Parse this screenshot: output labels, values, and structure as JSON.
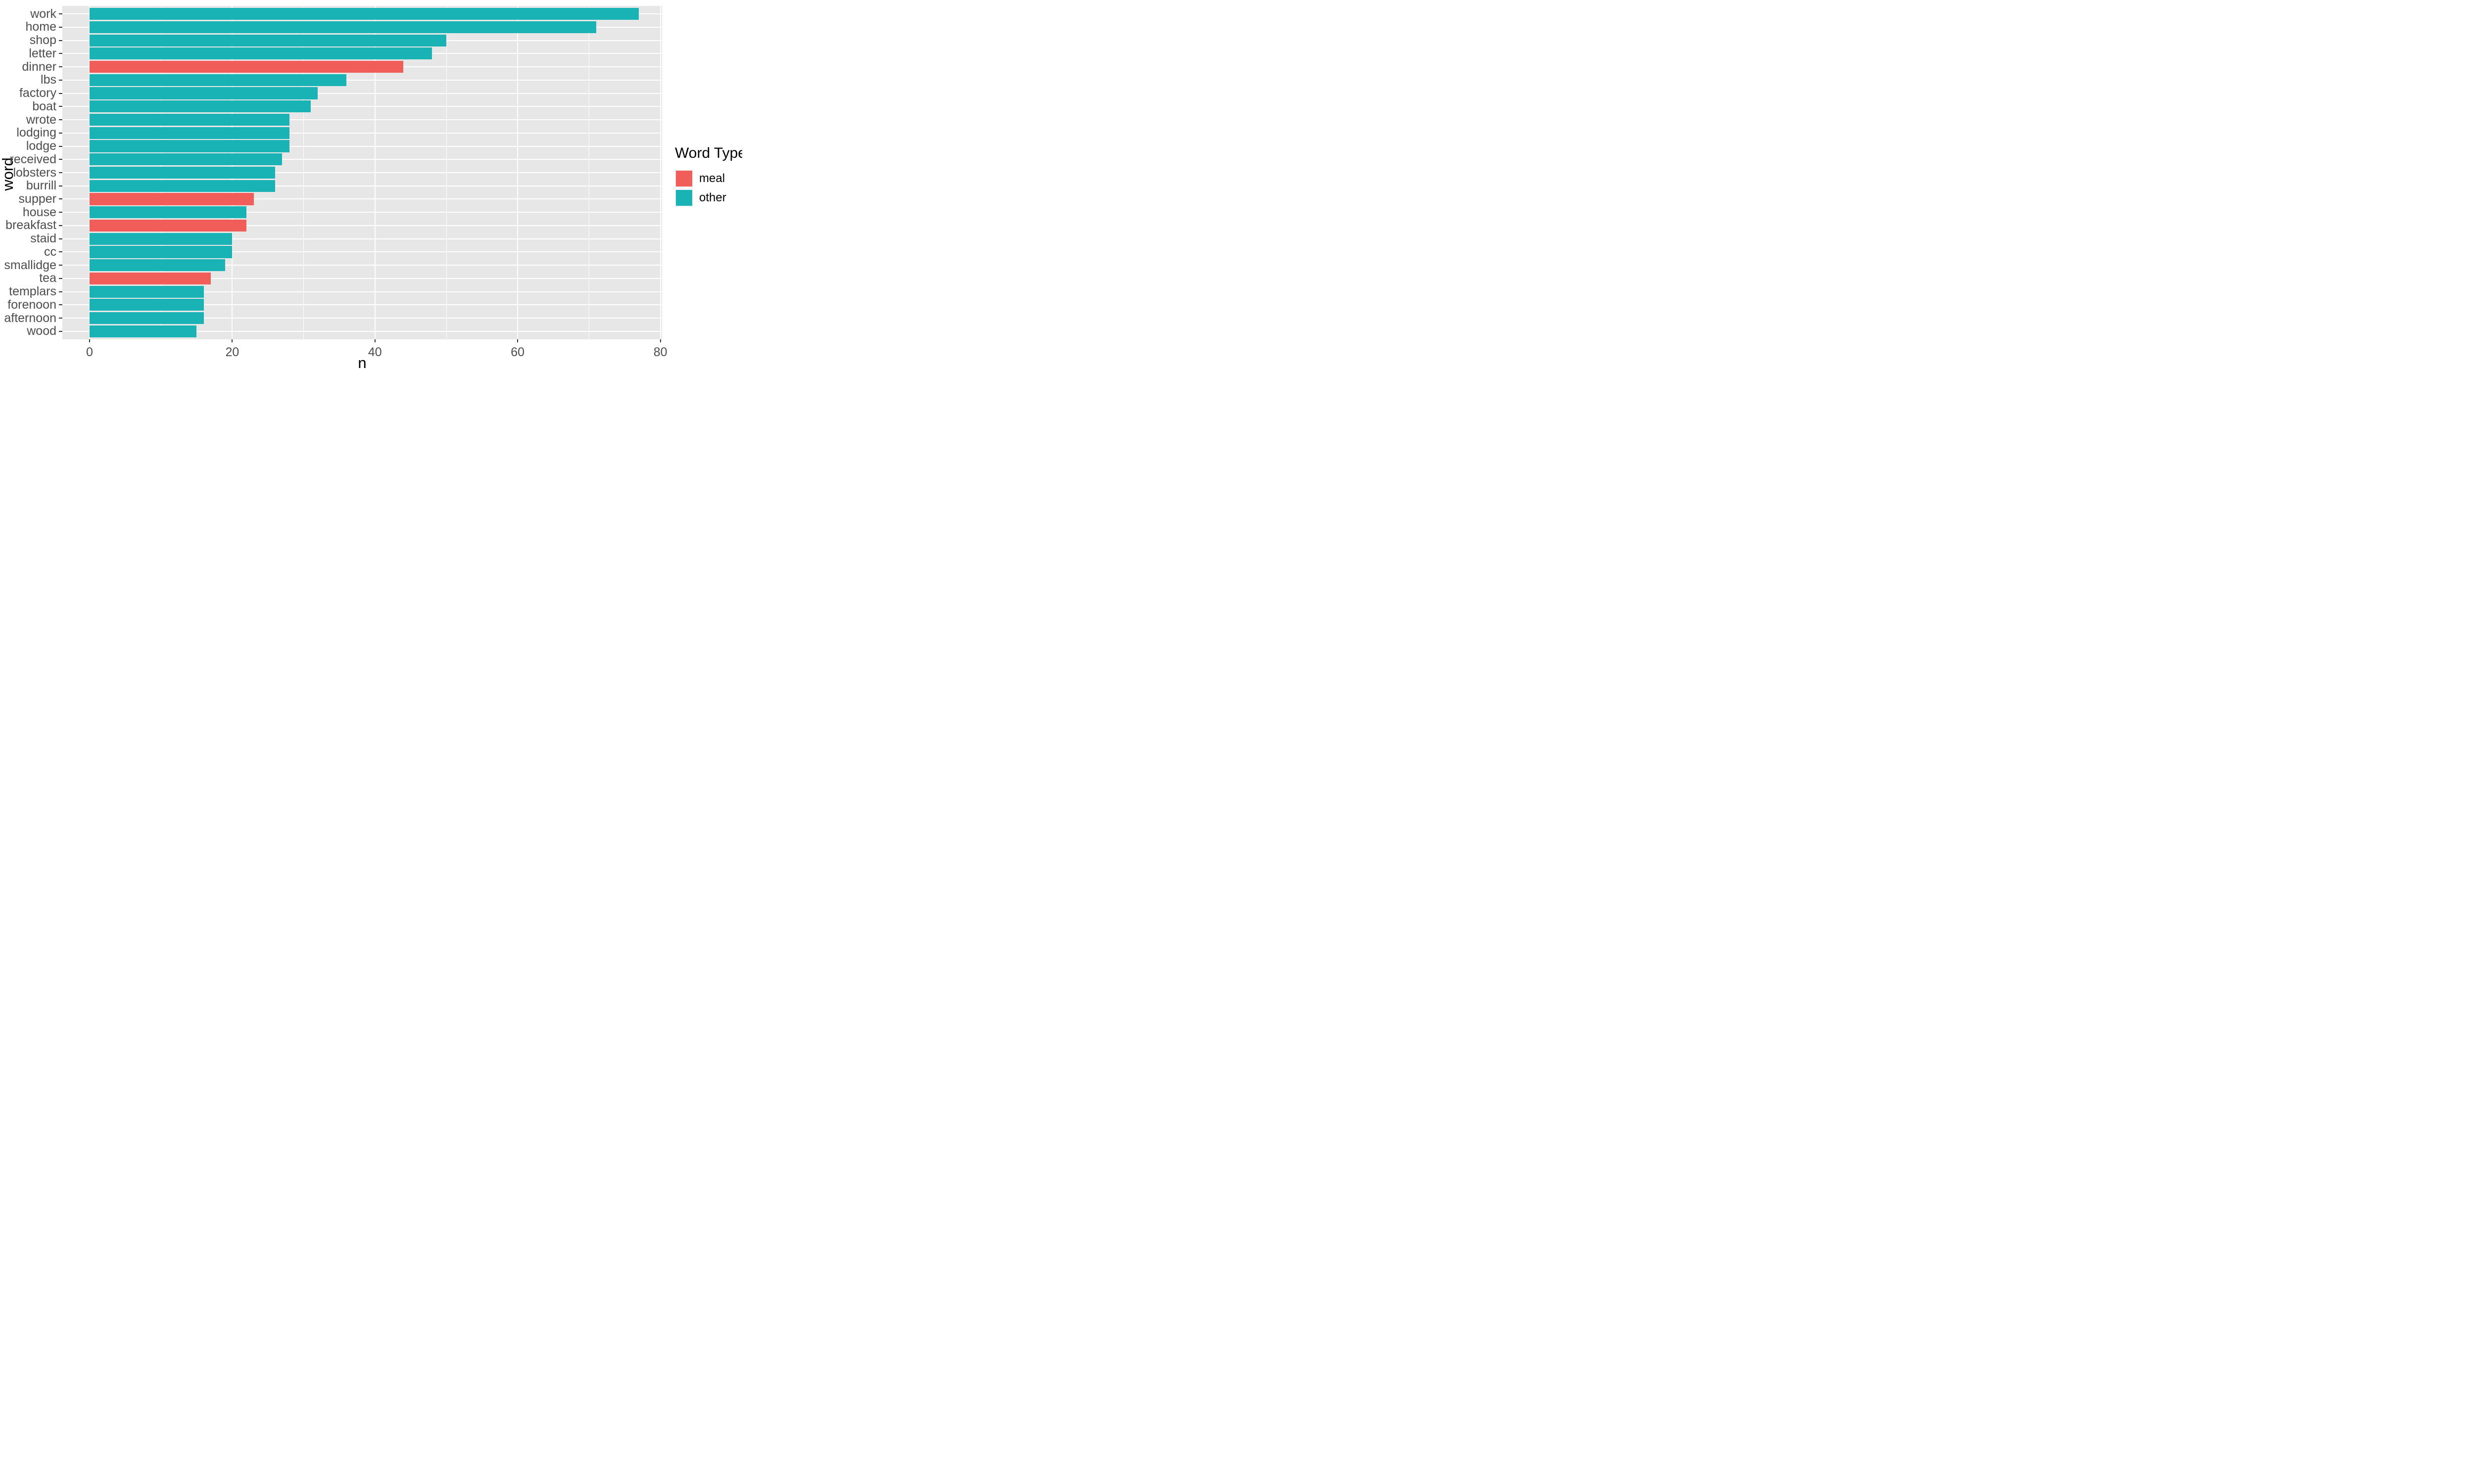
{
  "chart_data": {
    "type": "bar",
    "orientation": "horizontal",
    "title": "",
    "xlabel": "n",
    "ylabel": "word",
    "xlim": [
      0,
      80
    ],
    "x_major_ticks": [
      0,
      20,
      40,
      60,
      80
    ],
    "x_minor_ticks": [
      10,
      30,
      50,
      70
    ],
    "grid": true,
    "legend_position": "right",
    "panel_background_color": "#E7E7E7",
    "grid_color": "#FFFFFF",
    "axis_text_color": "#4D4D4D",
    "axis_title_color": "#000000",
    "bar_height_fraction": 0.9,
    "legend": {
      "title": "Word Type",
      "entries": [
        {
          "label": "meal",
          "color": "#F15E59"
        },
        {
          "label": "other",
          "color": "#1AB3B5"
        }
      ]
    },
    "categories": [
      "work",
      "home",
      "shop",
      "letter",
      "dinner",
      "lbs",
      "factory",
      "boat",
      "wrote",
      "lodging",
      "lodge",
      "received",
      "lobsters",
      "burrill",
      "supper",
      "house",
      "breakfast",
      "staid",
      "cc",
      "smallidge",
      "tea",
      "templars",
      "forenoon",
      "afternoon",
      "wood"
    ],
    "word_types": [
      "other",
      "other",
      "other",
      "other",
      "meal",
      "other",
      "other",
      "other",
      "other",
      "other",
      "other",
      "other",
      "other",
      "other",
      "meal",
      "other",
      "meal",
      "other",
      "other",
      "other",
      "meal",
      "other",
      "other",
      "other",
      "other"
    ],
    "series": [
      {
        "name": "n",
        "values": [
          77,
          71,
          50,
          48,
          44,
          36,
          32,
          31,
          28,
          28,
          28,
          27,
          26,
          26,
          23,
          22,
          22,
          20,
          20,
          19,
          17,
          16,
          16,
          16,
          15
        ]
      }
    ]
  }
}
